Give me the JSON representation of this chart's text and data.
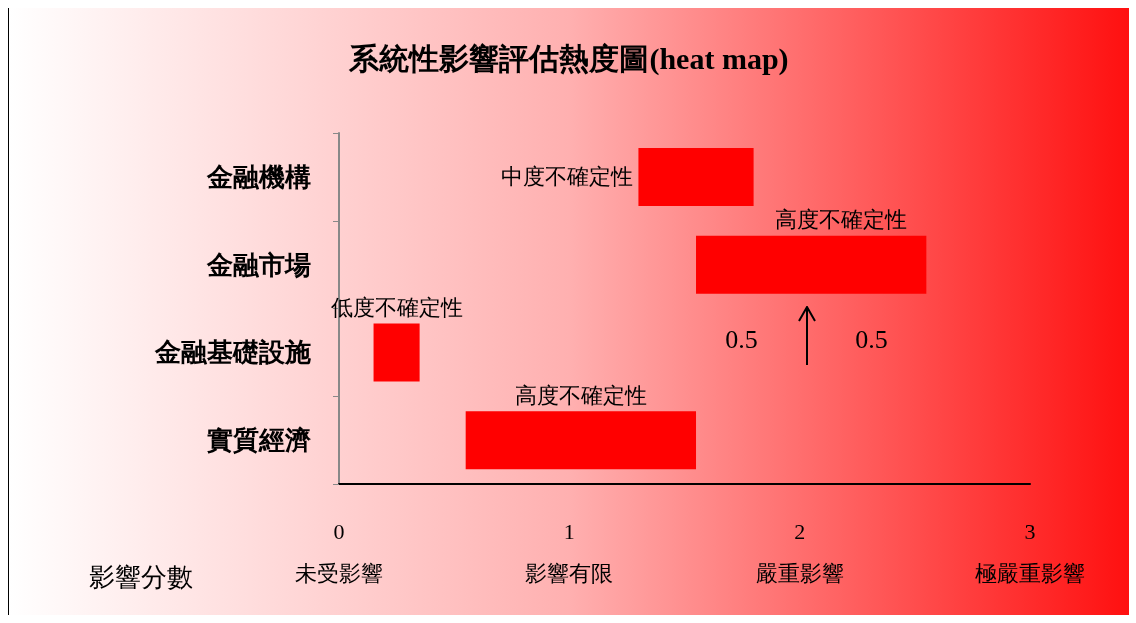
{
  "chart_data": {
    "type": "bar",
    "orientation": "horizontal",
    "title": "系統性影響評估熱度圖(heat map)",
    "xlabel": "影響分數",
    "categories": [
      "金融機構",
      "金融市場",
      "金融基礎設施",
      "實質經濟"
    ],
    "base": [
      1.3,
      1.55,
      0.15,
      0.55
    ],
    "values": [
      0.5,
      1.0,
      0.2,
      1.0
    ],
    "color": "#ff0000",
    "value_labels": [
      "中度不確定性",
      "高度不確定性",
      "低度不確定性",
      "高度不確定性"
    ],
    "xlim": [
      0,
      3
    ],
    "xticks": [
      {
        "value": 0,
        "label": "0\n未受影響"
      },
      {
        "value": 1,
        "label": "1\n影響有限"
      },
      {
        "value": 2,
        "label": "2\n嚴重影響"
      },
      {
        "value": 3,
        "label": "3\n極嚴重影響"
      }
    ],
    "annotations": [
      "0.5",
      "0.5"
    ],
    "grid": false
  }
}
